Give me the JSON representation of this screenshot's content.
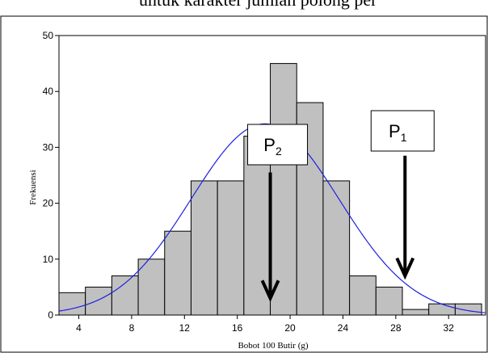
{
  "top_caption": "untuk karakter jumlah polong per",
  "chart_data": {
    "type": "bar",
    "bin_edges": [
      2.5,
      4.5,
      6.5,
      8.5,
      10.5,
      12.5,
      14.5,
      16.5,
      18.5,
      20.5,
      22.5,
      24.5,
      26.5,
      28.5,
      30.5,
      32.5,
      34.5
    ],
    "values": [
      4,
      5,
      7,
      10,
      15,
      24,
      24,
      32,
      45,
      38,
      24,
      7,
      5,
      1,
      2,
      2
    ],
    "xlabel": "Bobot 100 Butir (g)",
    "ylabel": "Frekuensi",
    "xlim": [
      2.5,
      34.8
    ],
    "ylim": [
      0,
      50
    ],
    "x_ticks": [
      4,
      8,
      12,
      16,
      20,
      24,
      28,
      32
    ],
    "y_ticks": [
      0,
      10,
      20,
      30,
      40,
      50
    ],
    "bar_color": "#c0c0c0",
    "curve": {
      "type": "normal",
      "mean": 18.1,
      "sd": 5.6,
      "peak": 34.2,
      "color": "#2020e0"
    },
    "annotations": [
      {
        "label": "P",
        "subscript": "2",
        "x": 18.5,
        "arrow_top_y": 25.5,
        "arrow_bottom_y": 3
      },
      {
        "label": "P",
        "subscript": "1",
        "x": 28.7,
        "arrow_top_y": 28.5,
        "arrow_bottom_y": 7
      }
    ]
  }
}
